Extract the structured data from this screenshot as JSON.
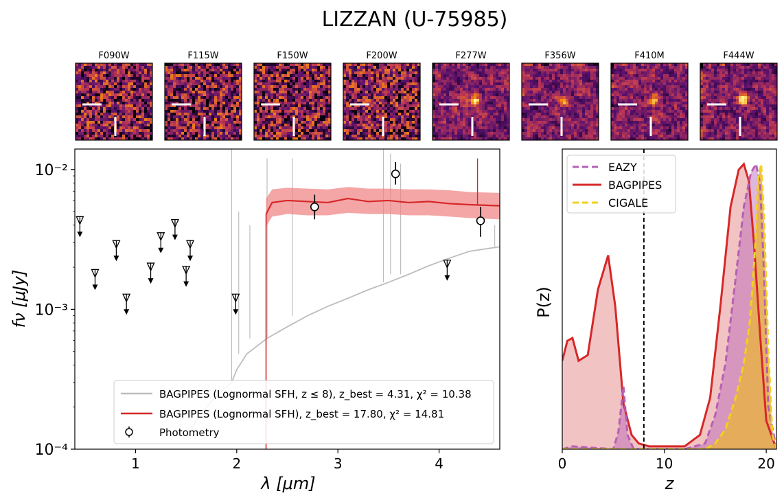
{
  "title": "LIZZAN (U-75985)",
  "colors": {
    "bagpipes_red": "#d62728",
    "bagpipes_band": "#f08080",
    "gray_model": "#bdbdbd",
    "eazy": "#b55fb5",
    "cigale": "#f2d11e",
    "cigale_fill": "#e8b04a",
    "pz_fill_red": "#f0b8b8"
  },
  "cutouts": {
    "bands": [
      "F090W",
      "F115W",
      "F150W",
      "F200W",
      "F277W",
      "F356W",
      "F410M",
      "F444W"
    ],
    "colormap": "inferno",
    "marker_icon": "crosshair-ticks-icon"
  },
  "chart_data": [
    {
      "type": "line",
      "panel": "SED",
      "xlabel": "λ [μm]",
      "ylabel": "fν [μJy]",
      "xlim": [
        0.4,
        4.6
      ],
      "ylim": [
        0.0001,
        0.014
      ],
      "yscale": "log",
      "xticks": [
        1,
        2,
        3,
        4
      ],
      "yticks": [
        {
          "value": 0.0001,
          "label": "10⁻⁴"
        },
        {
          "value": 0.001,
          "label": "10⁻³"
        },
        {
          "value": 0.01,
          "label": "10⁻²"
        }
      ],
      "legend_position": "lower-right",
      "series": [
        {
          "name": "BAGPIPES (Lognormal SFH, z ≤ 8), z_best = 4.31, χ² = 10.38",
          "legend_label": "BAGPIPES (Lognormal SFH, z ≤ 8), ",
          "legend_stats": "z_best = 4.31, χ² = 10.38",
          "color": "#bdbdbd",
          "x": [
            1.55,
            1.65,
            1.75,
            1.85,
            1.95,
            2.0,
            2.1,
            2.3,
            2.5,
            2.7,
            2.9,
            3.1,
            3.3,
            3.5,
            3.7,
            3.9,
            4.1,
            4.3,
            4.6
          ],
          "y": [
            0.00014,
            0.00018,
            0.00022,
            0.00026,
            0.0003,
            0.00037,
            0.00048,
            0.00062,
            0.00075,
            0.0009,
            0.00105,
            0.0012,
            0.00138,
            0.00156,
            0.00178,
            0.00205,
            0.00232,
            0.0026,
            0.0028
          ]
        },
        {
          "name": "BAGPIPES (Lognormal SFH), z_best = 17.80, χ² = 14.81",
          "legend_label": "BAGPIPES (Lognormal SFH), ",
          "legend_stats": "z_best = 17.80, χ² = 14.81",
          "color": "#d62728",
          "x": [
            2.29,
            2.35,
            2.5,
            2.7,
            2.9,
            3.1,
            3.3,
            3.5,
            3.7,
            3.9,
            4.1,
            4.3,
            4.6
          ],
          "y": [
            0.0048,
            0.0058,
            0.006,
            0.0059,
            0.0058,
            0.0062,
            0.0059,
            0.006,
            0.0058,
            0.0059,
            0.0057,
            0.0056,
            0.0055
          ],
          "band_low": [
            0.0039,
            0.0046,
            0.0048,
            0.0047,
            0.0047,
            0.0049,
            0.0048,
            0.0048,
            0.0047,
            0.0047,
            0.0046,
            0.0045,
            0.0044
          ],
          "band_high": [
            0.0062,
            0.0072,
            0.0074,
            0.0073,
            0.0072,
            0.0075,
            0.0073,
            0.0073,
            0.0072,
            0.0072,
            0.0071,
            0.0069,
            0.0068
          ]
        }
      ],
      "photometry": {
        "name": "Photometry",
        "detections": [
          {
            "x": 2.77,
            "y": 0.0054,
            "ylow": 0.0044,
            "yhigh": 0.0066
          },
          {
            "x": 3.57,
            "y": 0.0093,
            "ylow": 0.0078,
            "yhigh": 0.0113
          },
          {
            "x": 4.41,
            "y": 0.0043,
            "ylow": 0.0033,
            "yhigh": 0.0054
          }
        ],
        "upper_limits": [
          {
            "x": 0.45,
            "y": 0.0043
          },
          {
            "x": 0.6,
            "y": 0.0018
          },
          {
            "x": 0.81,
            "y": 0.0029
          },
          {
            "x": 0.91,
            "y": 0.0012
          },
          {
            "x": 1.15,
            "y": 0.002
          },
          {
            "x": 1.25,
            "y": 0.0033
          },
          {
            "x": 1.39,
            "y": 0.0041
          },
          {
            "x": 1.5,
            "y": 0.0019
          },
          {
            "x": 1.54,
            "y": 0.0029
          },
          {
            "x": 1.99,
            "y": 0.0012
          },
          {
            "x": 4.08,
            "y": 0.0021
          }
        ]
      }
    },
    {
      "type": "area",
      "panel": "P(z)",
      "xlabel": "z",
      "ylabel": "P(z)",
      "xlim": [
        0,
        21
      ],
      "ylim": [
        0,
        1.0
      ],
      "xticks": [
        0,
        10,
        20
      ],
      "yticks_visible": false,
      "vline": 8,
      "legend_position": "top-left",
      "series": [
        {
          "name": "EAZY",
          "color": "#b55fb5",
          "style": "dashed",
          "x": [
            0,
            1.0,
            5.0,
            5.5,
            6.0,
            6.4,
            7.0,
            12,
            14,
            15,
            16,
            17,
            17.8,
            18.5,
            19.0,
            19.4,
            19.8,
            20.2,
            21
          ],
          "y": [
            0,
            0.01,
            0,
            0.06,
            0.22,
            0.05,
            0,
            0,
            0.02,
            0.12,
            0.3,
            0.6,
            0.85,
            0.97,
            1.0,
            0.93,
            0.6,
            0.15,
            0
          ]
        },
        {
          "name": "BAGPIPES",
          "color": "#d62728",
          "style": "solid",
          "x": [
            0,
            0.5,
            1.0,
            1.6,
            2.5,
            3.5,
            4.5,
            5.2,
            6.0,
            6.8,
            7.5,
            8.5,
            10,
            12,
            13.5,
            14.5,
            15.5,
            16.5,
            17.3,
            17.8,
            18.3,
            18.8,
            19.4,
            20.0,
            21
          ],
          "y": [
            0.31,
            0.38,
            0.39,
            0.31,
            0.33,
            0.56,
            0.68,
            0.5,
            0.16,
            0.05,
            0.02,
            0.01,
            0.01,
            0.01,
            0.05,
            0.18,
            0.5,
            0.85,
            0.98,
            1.0,
            0.94,
            0.72,
            0.4,
            0.1,
            0
          ]
        },
        {
          "name": "CIGALE",
          "color": "#f2d11e",
          "style": "dashed",
          "x": [
            0,
            14,
            15,
            16,
            17,
            17.8,
            18.4,
            18.9,
            19.2,
            19.5,
            19.8,
            20.2,
            20.6,
            21
          ],
          "y": [
            0,
            0,
            0.02,
            0.07,
            0.18,
            0.3,
            0.45,
            0.7,
            0.95,
            1.0,
            0.8,
            0.35,
            0.05,
            0
          ]
        }
      ]
    }
  ]
}
